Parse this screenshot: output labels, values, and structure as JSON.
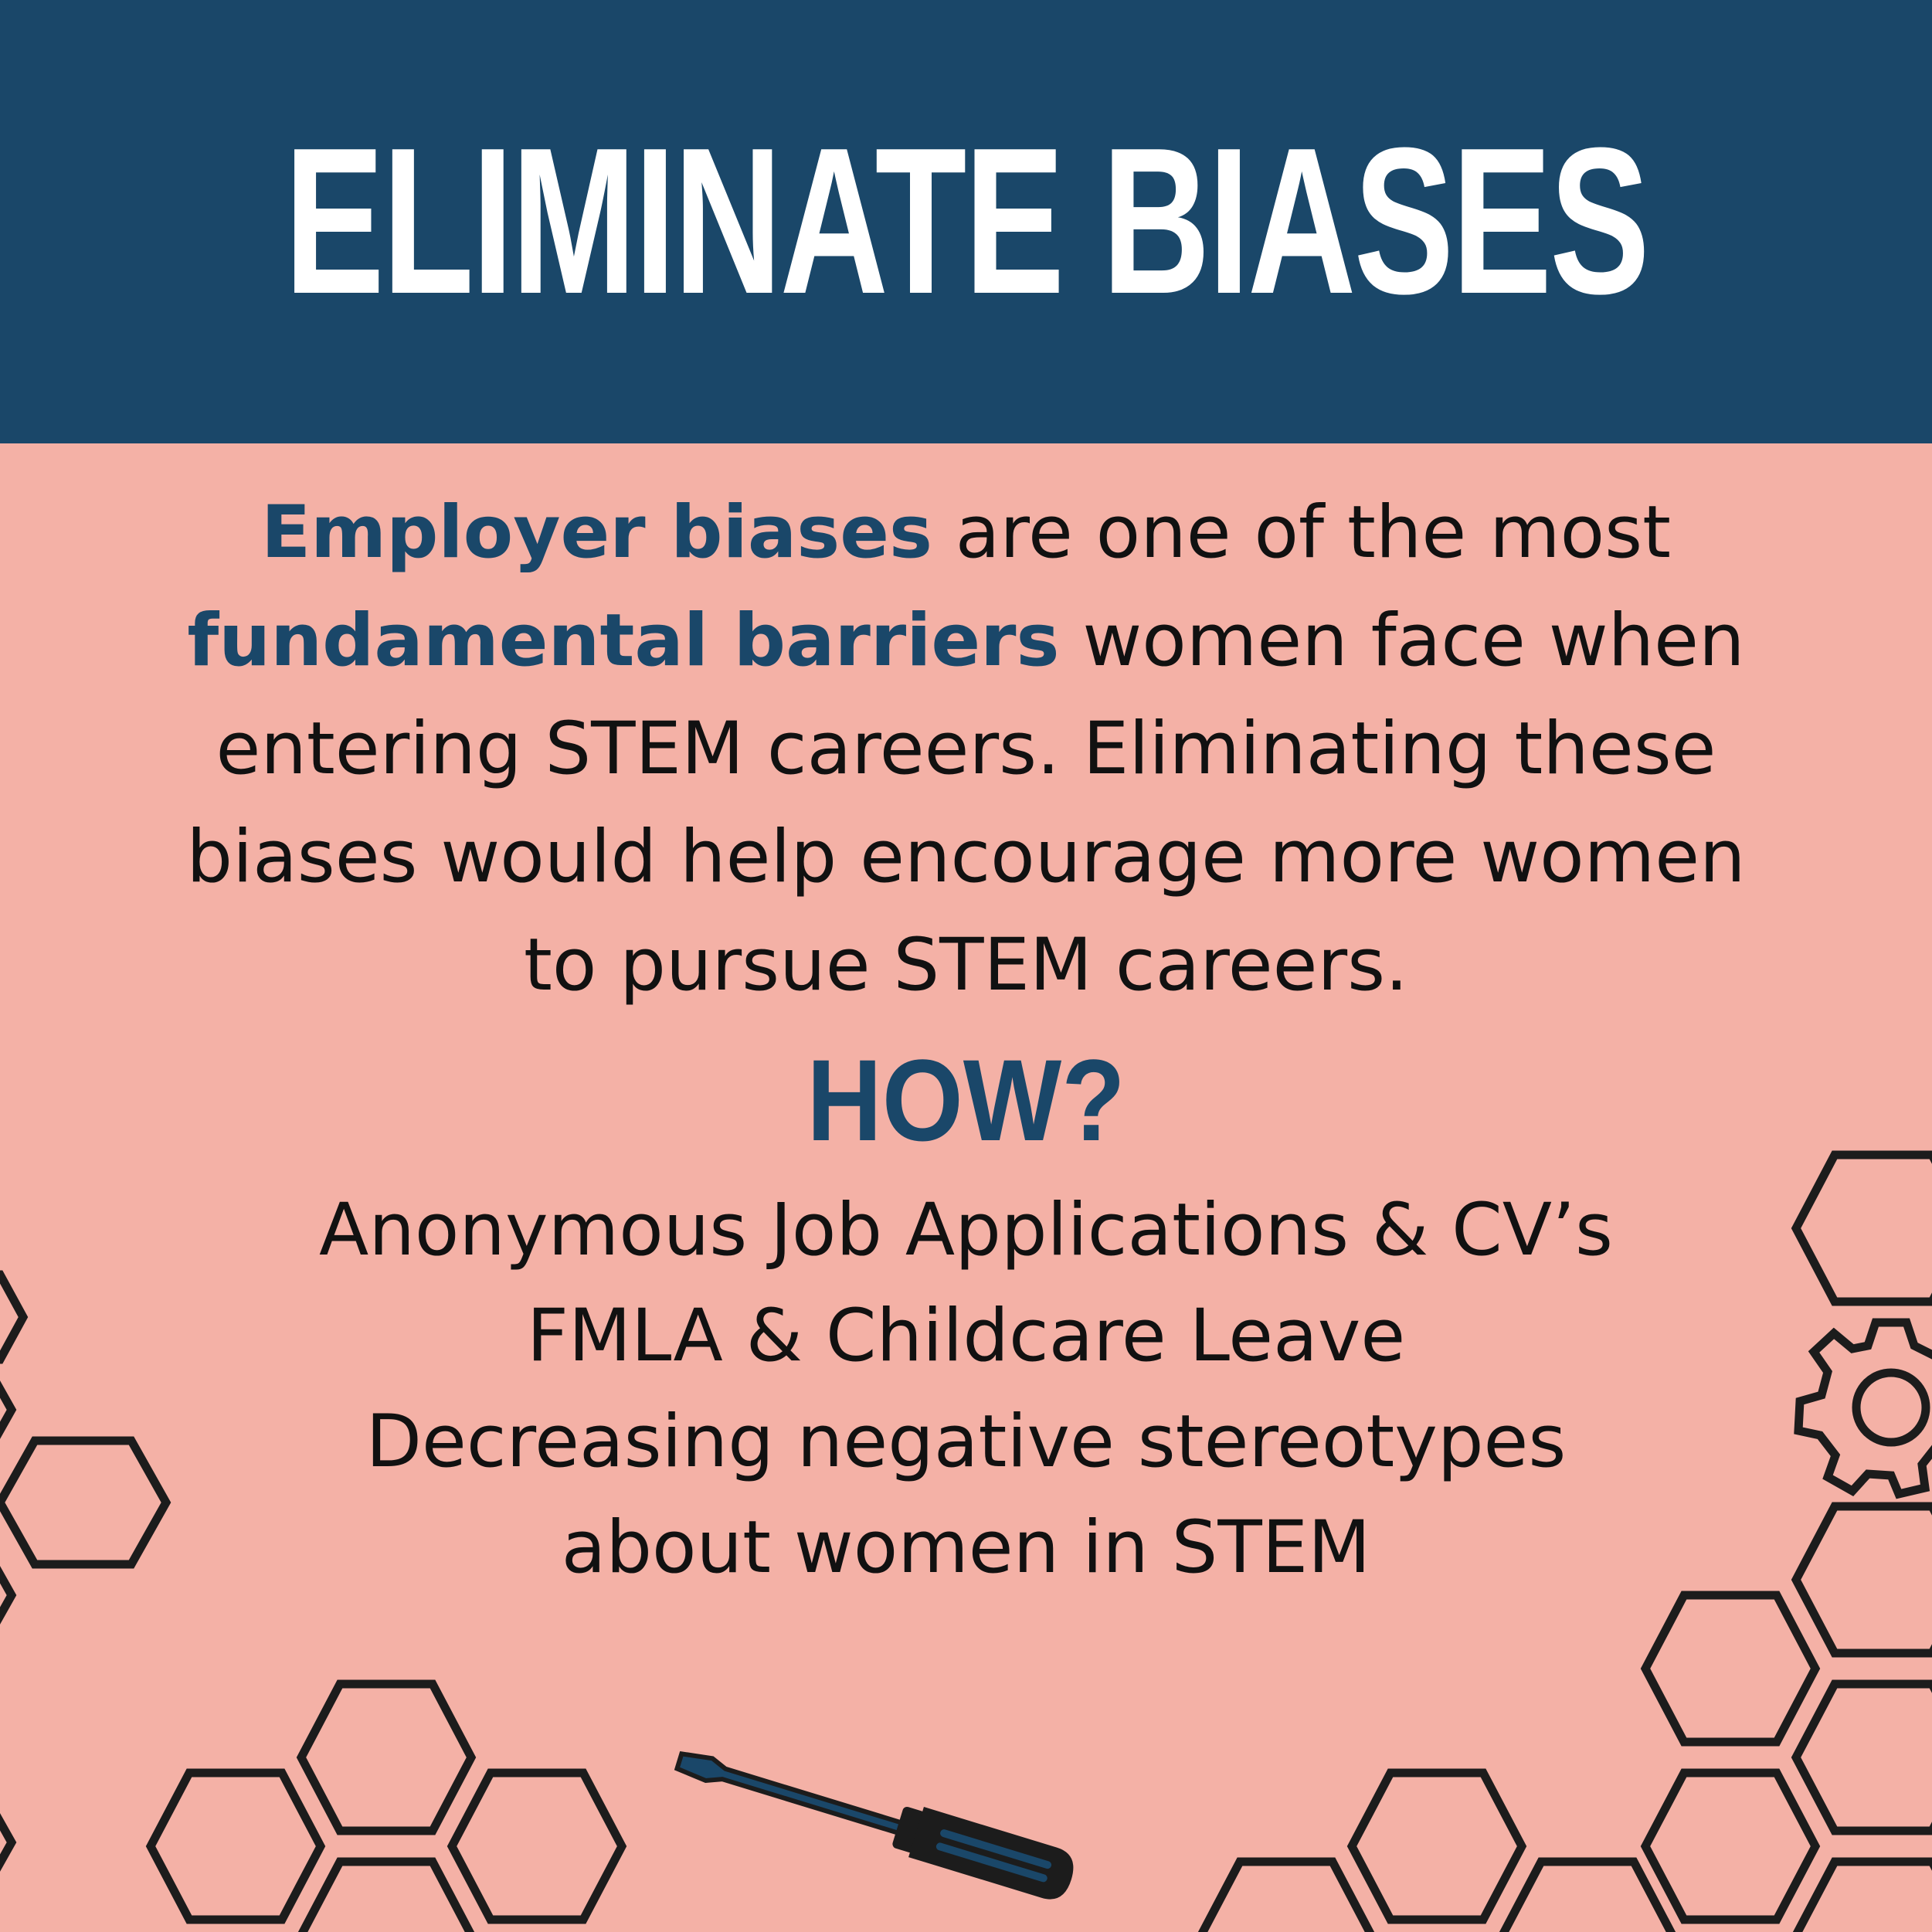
{
  "header": {
    "title": "ELIMINATE BIASES"
  },
  "intro": {
    "line1_highlight": "Employer biases",
    "line1_rest": " are one of the most",
    "line2_highlight": "fundamental barriers",
    "line2_rest": " women face when",
    "line3": "entering STEM careers. Eliminating these",
    "line4": "biases would help encourage more women",
    "line5": "to pursue STEM careers."
  },
  "how": {
    "heading": "HOW?",
    "items": [
      "Anonymous Job Applications & CV’s",
      "FMLA & Childcare Leave",
      "Decreasing negative stereotypes",
      "about women in STEM"
    ]
  },
  "colors": {
    "header_bg": "#1a4769",
    "page_bg": "#f4b1a6",
    "accent": "#1a4769",
    "text": "#111111",
    "decoration_stroke": "#1c1c1c"
  },
  "icons": [
    "hexagon-outline",
    "gear-icon",
    "screwdriver-icon"
  ]
}
